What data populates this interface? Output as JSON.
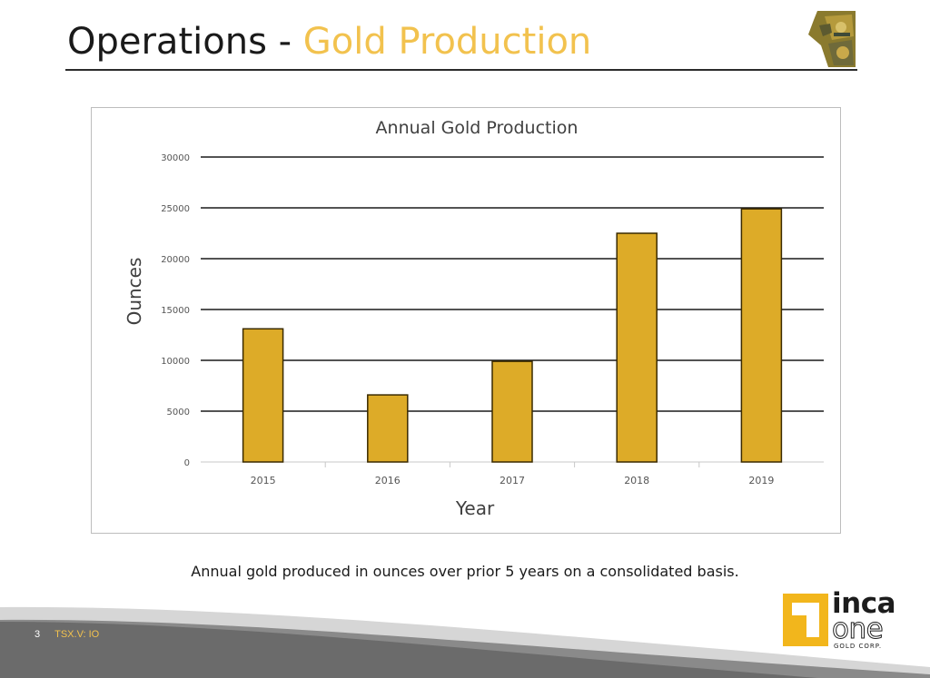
{
  "slide": {
    "title_prefix": "Operations - ",
    "title_accent": "Gold Production",
    "caption": "Annual gold produced in ounces over prior 5 years on a consolidated basis.",
    "footer": {
      "page_number": "3",
      "ticker": "TSX.V: IO"
    },
    "logo": {
      "line1": "inca",
      "line2": "one",
      "line3": "GOLD CORP."
    },
    "colors": {
      "accent": "#f2c24e",
      "bar_fill": "#ddab28",
      "bar_stroke": "#3a2a00",
      "gridline": "#1a1a1a"
    }
  },
  "chart_data": {
    "type": "bar",
    "title": "Annual Gold Production",
    "xlabel": "Year",
    "ylabel": "Ounces",
    "categories": [
      "2015",
      "2016",
      "2017",
      "2018",
      "2019"
    ],
    "values": [
      13100,
      6600,
      9900,
      22500,
      24900
    ],
    "ylim": [
      0,
      30000
    ],
    "yticks": [
      "0",
      "5000",
      "10000",
      "15000",
      "20000",
      "25000",
      "30000"
    ],
    "grid": true,
    "legend": "none"
  }
}
